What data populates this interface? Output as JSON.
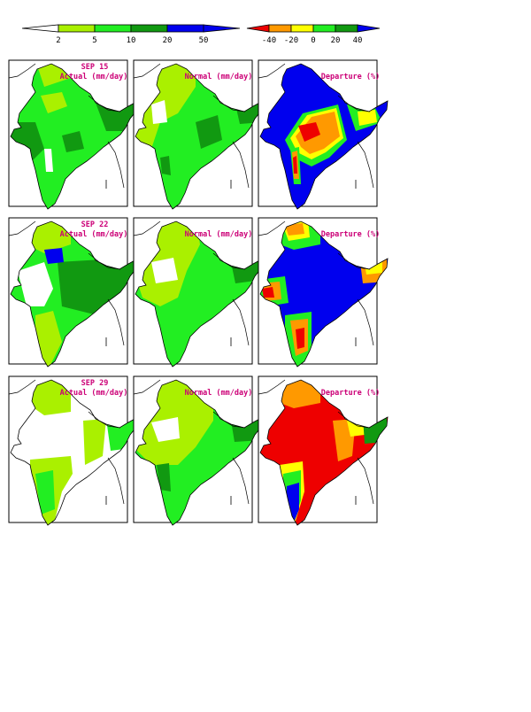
{
  "colors": {
    "white": "#ffffff",
    "lightgreen": "#aaf000",
    "green": "#22ee22",
    "darkgreen": "#119911",
    "blue": "#0000ee",
    "red": "#ee0000",
    "orange": "#ff9900",
    "yellow": "#ffff00",
    "title": "#cc0077"
  },
  "legend_actual": {
    "ticks": [
      "2",
      "5",
      "10",
      "20",
      "50"
    ]
  },
  "legend_departure": {
    "ticks": [
      "-40",
      "-20",
      "0",
      "20",
      "40"
    ]
  },
  "rows": [
    {
      "week": "SEP 15",
      "actual_title": "Actual (mm/day)",
      "normal_title": "Normal (mm/day)",
      "departure_title": "Departure (%)"
    },
    {
      "week": "SEP 22",
      "actual_title": "Actual (mm/day)",
      "normal_title": "Normal (mm/day)",
      "departure_title": "Departure (%)"
    },
    {
      "week": "SEP 29",
      "actual_title": "Actual (mm/day)",
      "normal_title": "Normal (mm/day)",
      "departure_title": "Departure (%)"
    }
  ]
}
